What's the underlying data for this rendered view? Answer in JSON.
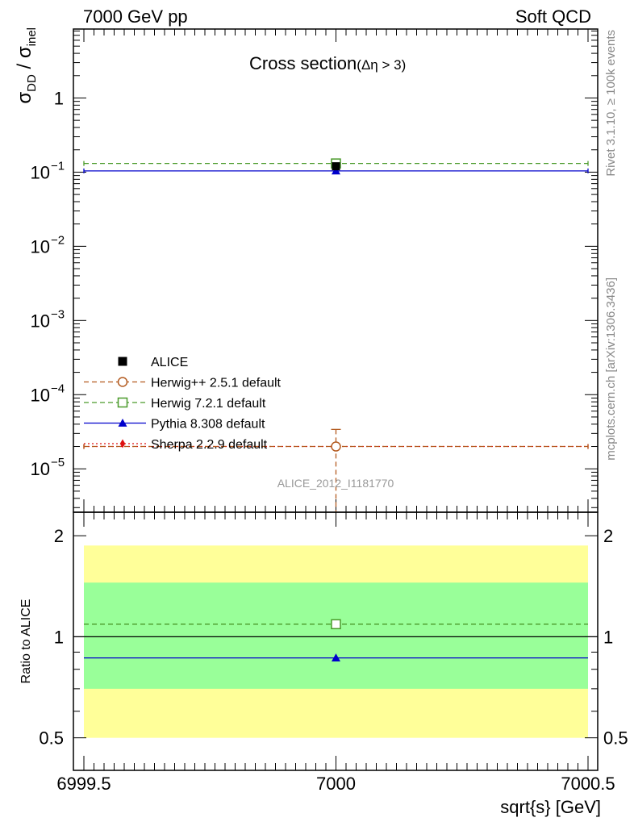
{
  "header": {
    "left": "7000 GeV pp",
    "right": "Soft QCD"
  },
  "side_labels": {
    "rivet": "Rivet 3.1.10, ≥ 100k events",
    "mcplots": "mcplots.cern.ch [arXiv:1306.3436]"
  },
  "watermark": "ALICE_2012_I1181770",
  "colors": {
    "alice": "#000000",
    "herwigpp": "#b35a1f",
    "herwig7": "#4a9a2a",
    "pythia": "#0000cc",
    "sherpa": "#dd1111",
    "band_inner": "#99ff99",
    "band_outer": "#ffff99"
  },
  "chart_data": [
    {
      "panel": "main",
      "type": "scatter",
      "title": "Cross section",
      "title_suffix": "(Δη > 3)",
      "ylabel": {
        "main": "σ",
        "sub1": "DD",
        "mid": " / σ",
        "sub2": "inel"
      },
      "xlabel": "",
      "yscale": "log",
      "xlim": [
        6999.5,
        7000.5
      ],
      "ylim": [
        2.6e-06,
        8.5
      ],
      "yticks": [
        {
          "value": 1,
          "base": "1",
          "exp": ""
        },
        {
          "value": 0.1,
          "base": "10",
          "exp": "−1"
        },
        {
          "value": 0.01,
          "base": "10",
          "exp": "−2"
        },
        {
          "value": 0.001,
          "base": "10",
          "exp": "−3"
        },
        {
          "value": 0.0001,
          "base": "10",
          "exp": "−4"
        },
        {
          "value": 1e-05,
          "base": "10",
          "exp": "−5"
        }
      ],
      "series": [
        {
          "key": "alice",
          "name": "ALICE",
          "x": [
            7000
          ],
          "values": [
            0.12
          ],
          "marker": "square-filled",
          "line": "none"
        },
        {
          "key": "herwigpp",
          "name": "Herwig++ 2.5.1 default",
          "x": [
            7000
          ],
          "values": [
            2e-05
          ],
          "err_up": [
            3.4e-05
          ],
          "err_down": [
            2.6e-06
          ],
          "marker": "circle-open",
          "line": "dashed"
        },
        {
          "key": "herwig7",
          "name": "Herwig 7.2.1 default",
          "x": [
            7000
          ],
          "values": [
            0.131
          ],
          "marker": "square-open",
          "line": "dashed"
        },
        {
          "key": "pythia",
          "name": "Pythia 8.308 default",
          "x": [
            7000
          ],
          "values": [
            0.104
          ],
          "marker": "triangle-filled",
          "line": "solid"
        },
        {
          "key": "sherpa",
          "name": "Sherpa 2.2.9 default",
          "x": [
            7000
          ],
          "values": [
            2e-05
          ],
          "marker": "diamond-filled",
          "line": "dotted"
        }
      ],
      "legend": "bottom-left"
    },
    {
      "panel": "ratio",
      "type": "scatter",
      "ylabel": "Ratio to ALICE",
      "xlabel": "sqrt{s} [GeV]",
      "yscale": "log",
      "xlim": [
        6999.5,
        7000.5
      ],
      "ylim": [
        0.4,
        2.35
      ],
      "xticks": [
        "6999.5",
        "7000",
        "7000.5"
      ],
      "yticks": [
        {
          "value": 0.5,
          "label": "0.5"
        },
        {
          "value": 1,
          "label": "1"
        },
        {
          "value": 2,
          "label": "2"
        }
      ],
      "bands": {
        "inner": [
          0.7,
          1.45
        ],
        "outer": [
          0.5,
          1.87
        ]
      },
      "series": [
        {
          "key": "herwig7",
          "name": "Herwig 7.2.1 default",
          "x": [
            7000
          ],
          "values": [
            1.09
          ]
        },
        {
          "key": "pythia",
          "name": "Pythia 8.308 default",
          "x": [
            7000
          ],
          "values": [
            0.865
          ]
        }
      ]
    }
  ]
}
